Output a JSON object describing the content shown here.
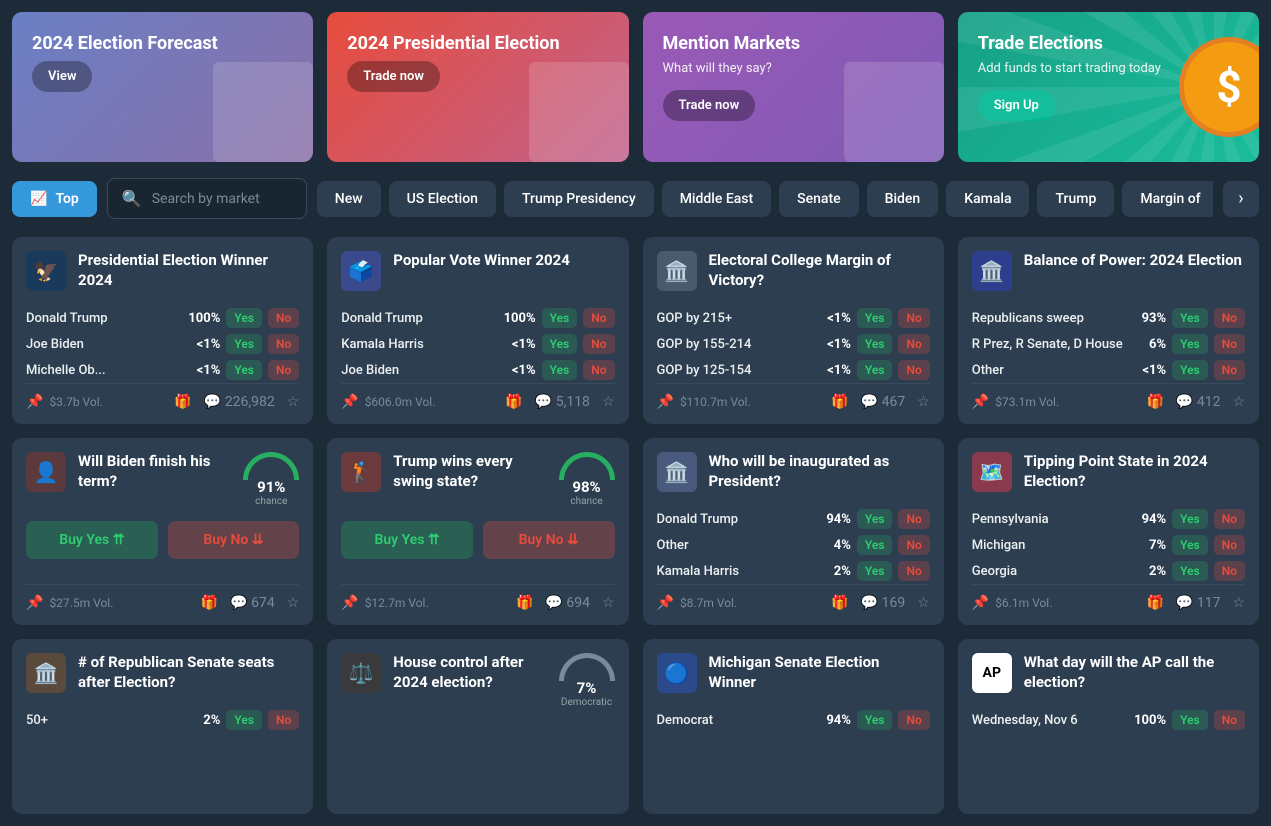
{
  "banners": [
    {
      "title": "2024 Election Forecast",
      "subtitle": "",
      "button": "View",
      "gradient": "linear-gradient(135deg,#6a7fc4,#8a6fa8)",
      "btnClass": ""
    },
    {
      "title": "2024 Presidential Election",
      "subtitle": "",
      "button": "Trade now",
      "gradient": "linear-gradient(135deg,#e74c3c,#c0628e)",
      "btnClass": ""
    },
    {
      "title": "Mention Markets",
      "subtitle": "What will they say?",
      "button": "Trade now",
      "gradient": "linear-gradient(135deg,#9b59b6,#7d5bb5)",
      "btnClass": ""
    },
    {
      "title": "Trade Elections",
      "subtitle": "Add funds to start trading today",
      "button": "Sign Up",
      "gradient": "linear-gradient(135deg,#16a085,#1abc9c)",
      "btnClass": "teal",
      "coin": true
    }
  ],
  "topLabel": "Top",
  "searchPlaceholder": "Search by market",
  "tags": [
    "New",
    "US Election",
    "Trump Presidency",
    "Middle East",
    "Senate",
    "Biden",
    "Kamala",
    "Trump",
    "Margin of"
  ],
  "markets": [
    {
      "type": "multi",
      "icon": "🦅",
      "iconBg": "#1a3a5c",
      "title": "Presidential Election Winner 2024",
      "outcomes": [
        {
          "name": "Donald Trump",
          "pct": "100%"
        },
        {
          "name": "Joe Biden",
          "pct": "<1%"
        },
        {
          "name": "Michelle Ob...",
          "pct": "<1%"
        }
      ],
      "vol": "$3.7b Vol.",
      "comments": "226,982",
      "pinned": true,
      "gift": true
    },
    {
      "type": "multi",
      "icon": "🗳️",
      "iconBg": "#3a4a8c",
      "title": "Popular Vote Winner 2024",
      "outcomes": [
        {
          "name": "Donald Trump",
          "pct": "100%"
        },
        {
          "name": "Kamala Harris",
          "pct": "<1%"
        },
        {
          "name": "Joe Biden",
          "pct": "<1%"
        }
      ],
      "vol": "$606.0m Vol.",
      "comments": "5,118",
      "pinned": true,
      "gift": true
    },
    {
      "type": "multi",
      "icon": "🏛️",
      "iconBg": "#4a5a6c",
      "title": "Electoral College Margin of Victory?",
      "outcomes": [
        {
          "name": "GOP by 215+",
          "pct": "<1%"
        },
        {
          "name": "GOP by 155-214",
          "pct": "<1%"
        },
        {
          "name": "GOP by 125-154",
          "pct": "<1%"
        }
      ],
      "vol": "$110.7m Vol.",
      "comments": "467",
      "pinned": true,
      "gift": true
    },
    {
      "type": "multi",
      "icon": "🏛️",
      "iconBg": "#2c3e8c",
      "title": "Balance of Power: 2024 Election",
      "outcomes": [
        {
          "name": "Republicans sweep",
          "pct": "93%"
        },
        {
          "name": "R Prez, R Senate, D House",
          "pct": "6%"
        },
        {
          "name": "Other",
          "pct": "<1%"
        }
      ],
      "vol": "$73.1m Vol.",
      "comments": "412",
      "pinned": true,
      "gift": true
    },
    {
      "type": "single",
      "icon": "👤",
      "iconBg": "#5a3a3c",
      "title": "Will Biden finish his term?",
      "gauge": "91%",
      "gaugeLabel": "chance",
      "buyYes": "Buy Yes",
      "buyNo": "Buy No",
      "vol": "$27.5m Vol.",
      "comments": "674",
      "pinned": true,
      "gift": true
    },
    {
      "type": "single",
      "icon": "🏌️",
      "iconBg": "#6a3a3c",
      "title": "Trump wins every swing state?",
      "gauge": "98%",
      "gaugeLabel": "chance",
      "buyYes": "Buy Yes",
      "buyNo": "Buy No",
      "vol": "$12.7m Vol.",
      "comments": "694",
      "pinned": true,
      "gift": true
    },
    {
      "type": "multi",
      "icon": "🏛️",
      "iconBg": "#4a5a7c",
      "title": "Who will be inaugurated as President?",
      "outcomes": [
        {
          "name": "Donald Trump",
          "pct": "94%"
        },
        {
          "name": "Other",
          "pct": "4%"
        },
        {
          "name": "Kamala Harris",
          "pct": "2%"
        }
      ],
      "vol": "$8.7m Vol.",
      "comments": "169",
      "pinned": true,
      "gift": true
    },
    {
      "type": "multi",
      "icon": "🗺️",
      "iconBg": "#8a3a4c",
      "title": "Tipping Point State in 2024 Election?",
      "outcomes": [
        {
          "name": "Pennsylvania",
          "pct": "94%"
        },
        {
          "name": "Michigan",
          "pct": "7%"
        },
        {
          "name": "Georgia",
          "pct": "2%"
        }
      ],
      "vol": "$6.1m Vol.",
      "comments": "117",
      "pinned": true,
      "gift": true
    },
    {
      "type": "multi",
      "icon": "🏛️",
      "iconBg": "#5a4a3c",
      "title": "# of Republican Senate seats after Election?",
      "outcomes": [
        {
          "name": "50+",
          "pct": "2%"
        }
      ],
      "vol": "",
      "comments": "",
      "partial": true
    },
    {
      "type": "single",
      "icon": "⚖️",
      "iconBg": "#3a3a3c",
      "title": "House control after 2024 election?",
      "gauge": "7%",
      "gaugeLabel": "Democratic",
      "gaugeColor": "#7a8a9a",
      "vol": "",
      "comments": "",
      "partial": true
    },
    {
      "type": "multi",
      "icon": "🔵",
      "iconBg": "#2a4a8c",
      "title": "Michigan Senate Election Winner",
      "outcomes": [
        {
          "name": "Democrat",
          "pct": "94%"
        }
      ],
      "vol": "",
      "comments": "",
      "partial": true
    },
    {
      "type": "multi",
      "icon": "AP",
      "iconBg": "#fff",
      "iconColor": "#000",
      "title": "What day will the AP call the election?",
      "outcomes": [
        {
          "name": "Wednesday, Nov 6",
          "pct": "100%"
        }
      ],
      "vol": "",
      "comments": "",
      "partial": true
    }
  ]
}
